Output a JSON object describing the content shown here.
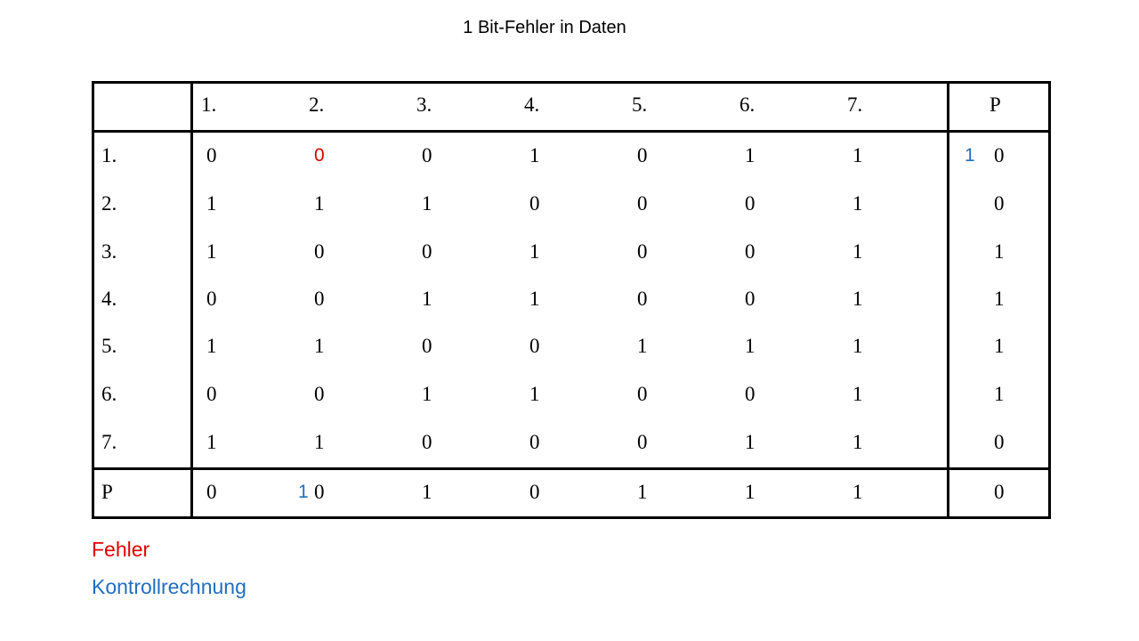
{
  "title": "1 Bit-Fehler in Daten",
  "colors": {
    "error": "#e00000",
    "check": "#1f6fbf"
  },
  "col_headers": [
    "1.",
    "2.",
    "3.",
    "4.",
    "5.",
    "6.",
    "7."
  ],
  "parity_header": "P",
  "row_headers": [
    "1.",
    "2.",
    "3.",
    "4.",
    "5.",
    "6.",
    "7."
  ],
  "rows": [
    [
      "0",
      "0",
      "0",
      "1",
      "0",
      "1",
      "1"
    ],
    [
      "1",
      "1",
      "1",
      "0",
      "0",
      "0",
      "1"
    ],
    [
      "1",
      "0",
      "0",
      "1",
      "0",
      "0",
      "1"
    ],
    [
      "0",
      "0",
      "1",
      "1",
      "0",
      "0",
      "1"
    ],
    [
      "1",
      "1",
      "0",
      "0",
      "1",
      "1",
      "1"
    ],
    [
      "0",
      "0",
      "1",
      "1",
      "0",
      "0",
      "1"
    ],
    [
      "1",
      "1",
      "0",
      "0",
      "0",
      "1",
      "1"
    ]
  ],
  "row_parity": [
    "0",
    "0",
    "1",
    "1",
    "1",
    "1",
    "0"
  ],
  "parity_row_header": "P",
  "parity_row": [
    "0",
    "0",
    "1",
    "0",
    "1",
    "1",
    "1"
  ],
  "parity_corner": "0",
  "error_cell": {
    "row": 0,
    "col": 1
  },
  "check_row": "1",
  "check_col": "1",
  "legend": {
    "error": "Fehler",
    "check": "Kontrollrechnung"
  }
}
